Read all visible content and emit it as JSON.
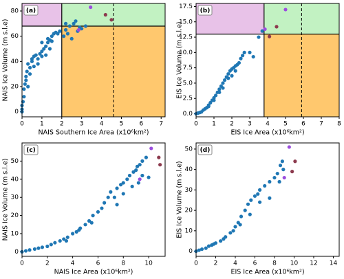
{
  "chart_data": [
    {
      "type": "scatter",
      "label": "(a)",
      "x_label": "NAIS Southern Ice Area (x10⁶km²)",
      "y_label": "NAIS Ice Volume (m s.l.e)",
      "xlim": [
        0,
        7.2
      ],
      "ylim": [
        -4,
        86
      ],
      "xticks": [
        0,
        1,
        2,
        3,
        4,
        5,
        6,
        7
      ],
      "yticks": [
        0,
        20,
        40,
        60,
        80
      ],
      "regions": {
        "x_threshold": 2,
        "y_threshold": 68,
        "dashed_x": 4.6,
        "colors": [
          "#e8c2e8",
          "#c2f2c2",
          "#ffc86e"
        ]
      },
      "series": [
        {
          "color": "#1f77b4",
          "x": [
            0,
            0,
            0,
            0.05,
            0.1,
            0.1,
            0.15,
            0.2,
            0.2,
            0.3,
            0.25,
            0.3,
            0.4,
            0.5,
            0.5,
            0.6,
            0.7,
            0.8,
            0.9,
            1.0,
            1.0,
            1.1,
            1.2,
            1.3,
            1.4,
            1.5,
            1.4,
            1.5,
            1.6,
            1.7,
            1.8,
            1.9,
            1.2,
            0.8,
            0.4,
            0.6,
            1.0,
            1.3,
            2.1,
            2.2,
            2.4,
            2.3,
            2.6,
            2.8,
            2.9,
            3.0,
            3.2,
            2.2,
            2.5,
            2.7
          ],
          "values": [
            0,
            2,
            5,
            8,
            12,
            18,
            22,
            25,
            28,
            20,
            32,
            38,
            35,
            40,
            42,
            44,
            45,
            42,
            46,
            44,
            48,
            50,
            52,
            55,
            57,
            56,
            50,
            60,
            62,
            63,
            62,
            64,
            45,
            38,
            30,
            36,
            55,
            58,
            60,
            65,
            68,
            62,
            70,
            64,
            67,
            66,
            68,
            70,
            58,
            72
          ]
        },
        {
          "color": "#9b4dde",
          "x": [
            3.45,
            2.85
          ],
          "values": [
            83,
            65
          ]
        },
        {
          "color": "#8c3a4e",
          "x": [
            4.2,
            4.5
          ],
          "values": [
            77,
            73
          ]
        }
      ]
    },
    {
      "type": "scatter",
      "label": "(b)",
      "x_label": "EIS Ice Area (x10⁶km²)",
      "y_label": "EIS Ice Volume (m s.l.e)",
      "xlim": [
        0,
        8
      ],
      "ylim": [
        -0.5,
        18
      ],
      "xticks": [
        0,
        1,
        2,
        3,
        4,
        5,
        6,
        7,
        8
      ],
      "yticks": [
        {
          "value": 0,
          "label": "0.0"
        },
        2.5,
        {
          "value": 5,
          "label": "5.0"
        },
        7.5,
        {
          "value": 10,
          "label": "10.0"
        },
        12.5,
        {
          "value": 15,
          "label": "15.0"
        },
        17.5
      ],
      "regions": {
        "x_threshold": 3.8,
        "y_threshold": 13,
        "dashed_x": 5.9,
        "colors": [
          "#e8c2e8",
          "#c2f2c2",
          "#ffc86e"
        ]
      },
      "series": [
        {
          "color": "#1f77b4",
          "x": [
            0,
            0.1,
            0.2,
            0.3,
            0.4,
            0.5,
            0.6,
            0.7,
            0.8,
            0.9,
            1.0,
            1.1,
            1.2,
            1.3,
            1.4,
            1.5,
            1.5,
            1.6,
            1.7,
            1.8,
            1.9,
            2.0,
            2.1,
            2.2,
            2.3,
            2.4,
            2.5,
            2.6,
            2.7,
            3.0,
            3.2,
            2.0,
            1.8,
            2.2,
            1.3,
            1.0,
            0.7,
            3.5,
            3.7
          ],
          "values": [
            0,
            0.1,
            0.2,
            0.3,
            0.6,
            0.8,
            1,
            1.4,
            1.8,
            2.2,
            2.6,
            3,
            3.5,
            4,
            4.5,
            5,
            4.2,
            5.5,
            6,
            6.5,
            7,
            7.3,
            7.5,
            7.8,
            8,
            8.3,
            9,
            9.5,
            10,
            10,
            9.3,
            6.2,
            5.8,
            7.0,
            3.5,
            2.2,
            1.2,
            12.5,
            13.5
          ]
        },
        {
          "color": "#9b4dde",
          "x": [
            3.85,
            5.0
          ],
          "values": [
            13.8,
            17.0
          ]
        },
        {
          "color": "#8c3a4e",
          "x": [
            4.1,
            4.5
          ],
          "values": [
            12.6,
            14.2
          ]
        }
      ]
    },
    {
      "type": "scatter",
      "label": "(c)",
      "x_label": "NAIS Ice Area (x10⁶km²)",
      "y_label": "NAIS Ice Volume (m s.l.e)",
      "xlim": [
        0,
        11.3
      ],
      "ylim": [
        -2.5,
        60
      ],
      "xticks": [
        0,
        2,
        4,
        6,
        8,
        10
      ],
      "yticks": [
        0,
        10,
        20,
        30,
        40,
        50
      ],
      "series": [
        {
          "color": "#1f77b4",
          "x": [
            0,
            0.3,
            0.6,
            1,
            1.3,
            1.6,
            2,
            2.3,
            2.6,
            3,
            3.3,
            3.6,
            4,
            4.3,
            4.6,
            5,
            5.3,
            5.6,
            6,
            6.3,
            6.5,
            6.8,
            7,
            7.3,
            7.5,
            7.8,
            8,
            8.3,
            8.5,
            8.8,
            9,
            9.1,
            9.3,
            9.5,
            9.8,
            8.7,
            9.2,
            9.5,
            10,
            8,
            7.5,
            5.5,
            4.5,
            3.5
          ],
          "values": [
            0,
            0.5,
            1,
            1.5,
            2,
            2.5,
            3,
            4,
            5,
            6,
            7,
            8,
            10,
            11,
            13,
            15,
            17,
            20,
            22,
            24,
            27,
            30,
            33,
            30,
            35,
            37,
            38,
            40,
            42,
            44,
            45,
            47,
            48,
            50,
            52,
            36,
            38,
            42,
            41,
            32,
            26,
            16,
            12,
            6
          ]
        },
        {
          "color": "#9b4dde",
          "x": [
            9.3,
            10.2
          ],
          "values": [
            40,
            57
          ]
        },
        {
          "color": "#8c3a4e",
          "x": [
            10.8,
            10.9
          ],
          "values": [
            52,
            48
          ]
        }
      ]
    },
    {
      "type": "scatter",
      "label": "(d)",
      "x_label": "EIS Ice Area (x10⁶km²)",
      "y_label": "EIS Ice Volume (m s.l.e)",
      "xlim": [
        0,
        14.6
      ],
      "ylim": [
        -2.5,
        53
      ],
      "xticks": [
        0,
        2,
        4,
        6,
        8,
        10,
        12,
        14
      ],
      "yticks": [
        0,
        10,
        20,
        30,
        40,
        50
      ],
      "series": [
        {
          "color": "#1f77b4",
          "x": [
            0,
            0.3,
            0.6,
            1,
            1.3,
            1.6,
            2,
            2.5,
            3,
            3.5,
            4,
            4.3,
            4.6,
            5,
            5.3,
            5.6,
            6,
            6.3,
            6.5,
            7,
            7.5,
            8,
            8.3,
            8.6,
            8.9,
            8.5,
            7.5,
            6.5,
            5.5,
            4.5,
            3.8,
            2.8,
            1.8,
            8.8
          ],
          "values": [
            0,
            0.5,
            1,
            1.5,
            2.5,
            3,
            4,
            5,
            7,
            9,
            12,
            14,
            17,
            20,
            23,
            25,
            27,
            28,
            30,
            32,
            34,
            36,
            38,
            42,
            40,
            34,
            26,
            24,
            18,
            13,
            10,
            6,
            3.5,
            44
          ]
        },
        {
          "color": "#9b4dde",
          "x": [
            9.0,
            9.5
          ],
          "values": [
            36,
            51
          ]
        },
        {
          "color": "#8c3a4e",
          "x": [
            9.8,
            10.1
          ],
          "values": [
            39,
            44
          ]
        }
      ]
    }
  ]
}
